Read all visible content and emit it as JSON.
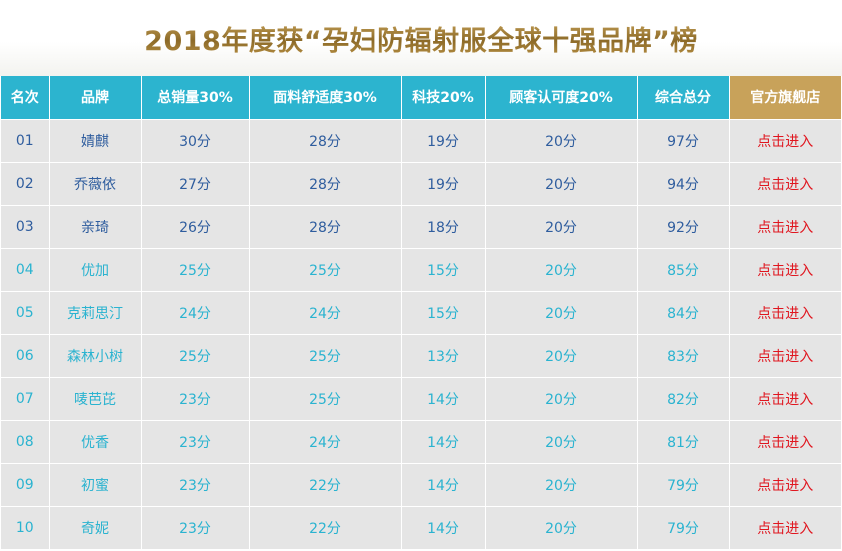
{
  "title": "2018年度获“孕妇防辐射服全球十强品牌”榜",
  "columns": [
    "名次",
    "品牌",
    "总销量30%",
    "面料舒适度30%",
    "科技20%",
    "顾客认可度20%",
    "综合总分",
    "官方旗舰店"
  ],
  "rows": [
    {
      "rank": "01",
      "brand": "婧麒",
      "sales": "30分",
      "comfort": "28分",
      "tech": "19分",
      "approval": "20分",
      "total": "97分",
      "link": "点击进入"
    },
    {
      "rank": "02",
      "brand": "乔薇依",
      "sales": "27分",
      "comfort": "28分",
      "tech": "19分",
      "approval": "20分",
      "total": "94分",
      "link": "点击进入"
    },
    {
      "rank": "03",
      "brand": "亲琦",
      "sales": "26分",
      "comfort": "28分",
      "tech": "18分",
      "approval": "20分",
      "total": "92分",
      "link": "点击进入"
    },
    {
      "rank": "04",
      "brand": "优加",
      "sales": "25分",
      "comfort": "25分",
      "tech": "15分",
      "approval": "20分",
      "total": "85分",
      "link": "点击进入"
    },
    {
      "rank": "05",
      "brand": "克莉思汀",
      "sales": "24分",
      "comfort": "24分",
      "tech": "15分",
      "approval": "20分",
      "total": "84分",
      "link": "点击进入"
    },
    {
      "rank": "06",
      "brand": "森林小树",
      "sales": "25分",
      "comfort": "25分",
      "tech": "13分",
      "approval": "20分",
      "total": "83分",
      "link": "点击进入"
    },
    {
      "rank": "07",
      "brand": "唛芭芘",
      "sales": "23分",
      "comfort": "25分",
      "tech": "14分",
      "approval": "20分",
      "total": "82分",
      "link": "点击进入"
    },
    {
      "rank": "08",
      "brand": "优香",
      "sales": "23分",
      "comfort": "24分",
      "tech": "14分",
      "approval": "20分",
      "total": "81分",
      "link": "点击进入"
    },
    {
      "rank": "09",
      "brand": "初蜜",
      "sales": "23分",
      "comfort": "22分",
      "tech": "14分",
      "approval": "20分",
      "total": "79分",
      "link": "点击进入"
    },
    {
      "rank": "10",
      "brand": "奇妮",
      "sales": "23分",
      "comfort": "22分",
      "tech": "14分",
      "approval": "20分",
      "total": "79分",
      "link": "点击进入"
    }
  ],
  "colors": {
    "header_bg": "#2cb4cf",
    "official_header_bg": "#c8a25a",
    "row_bg": "#e5e5e5",
    "top3_text": "#2f5d9e",
    "rest_text": "#2ab3d0",
    "link_text": "#e0161f",
    "title_gold": "#9c7a33"
  }
}
